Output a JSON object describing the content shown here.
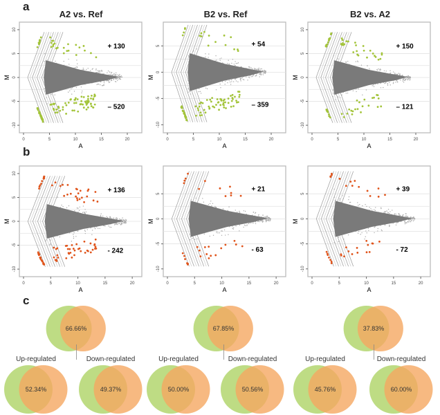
{
  "panels": {
    "a": "a",
    "b": "b",
    "c": "c"
  },
  "chart_data": [
    {
      "type": "scatter",
      "panel": "a",
      "title": "A2 vs. Ref",
      "xlabel": "A",
      "ylabel": "M",
      "xlim": [
        0,
        22
      ],
      "ylim": [
        -11,
        11
      ],
      "xticks": [
        0,
        5,
        10,
        15,
        20
      ],
      "yticks": [
        -10,
        -5,
        0,
        5,
        10
      ],
      "up_label": "+ 130",
      "down_label": "– 520",
      "highlight_color": "#a3c43a"
    },
    {
      "type": "scatter",
      "panel": "a",
      "title": "B2 vs. Ref",
      "xlabel": "A",
      "ylabel": "M",
      "xlim": [
        0,
        22
      ],
      "ylim": [
        -11,
        9
      ],
      "xticks": [
        0,
        5,
        10,
        15,
        20
      ],
      "yticks": [
        -10,
        -5,
        0,
        5
      ],
      "up_label": "+ 54",
      "down_label": "– 359",
      "highlight_color": "#a3c43a"
    },
    {
      "type": "scatter",
      "panel": "a",
      "title": "B2 vs. A2",
      "xlabel": "A",
      "ylabel": "M",
      "xlim": [
        0,
        22
      ],
      "ylim": [
        -11,
        11
      ],
      "xticks": [
        0,
        5,
        10,
        15,
        20
      ],
      "yticks": [
        -10,
        -5,
        0,
        5,
        10
      ],
      "up_label": "+ 150",
      "down_label": "– 121",
      "highlight_color": "#a3c43a"
    },
    {
      "type": "scatter",
      "panel": "b",
      "title": "",
      "xlabel": "A",
      "ylabel": "M",
      "xlim": [
        0,
        21
      ],
      "ylim": [
        -11,
        11
      ],
      "xticks": [
        0,
        5,
        10,
        15,
        20
      ],
      "yticks": [
        -10,
        -5,
        0,
        5,
        10
      ],
      "up_label": "+ 136",
      "down_label": "- 242",
      "highlight_color": "#e0541b"
    },
    {
      "type": "scatter",
      "panel": "b",
      "title": "",
      "xlabel": "A",
      "ylabel": "M",
      "xlim": [
        0,
        21
      ],
      "ylim": [
        -11,
        10
      ],
      "xticks": [
        0,
        5,
        10,
        15,
        20
      ],
      "yticks": [
        -10,
        -5,
        0,
        5
      ],
      "up_label": "+ 21",
      "down_label": "- 63",
      "highlight_color": "#e0541b"
    },
    {
      "type": "scatter",
      "panel": "b",
      "title": "",
      "xlabel": "A",
      "ylabel": "M",
      "xlim": [
        0,
        21
      ],
      "ylim": [
        -11,
        10
      ],
      "xticks": [
        0,
        5,
        10,
        15,
        20
      ],
      "yticks": [
        -10,
        -5,
        0,
        5
      ],
      "up_label": "+ 39",
      "down_label": "- 72",
      "highlight_color": "#e0541b"
    }
  ],
  "venns": [
    {
      "overall": "66.66%",
      "up_label": "Up-regulated",
      "up": "52.34%",
      "down_label": "Down-regulated",
      "down": "49.37%"
    },
    {
      "overall": "67.85%",
      "up_label": "Up-regulated",
      "up": "50.00%",
      "down_label": "Down-regulated",
      "down": "50.56%"
    },
    {
      "overall": "37.83%",
      "up_label": "Up-regulated",
      "up": "45.76%",
      "down_label": "Down-regulated",
      "down": "60.00%"
    }
  ],
  "colors": {
    "venn_left": "#b3d66f",
    "venn_right": "#f5a862",
    "cloud": "#7a7a7a"
  }
}
